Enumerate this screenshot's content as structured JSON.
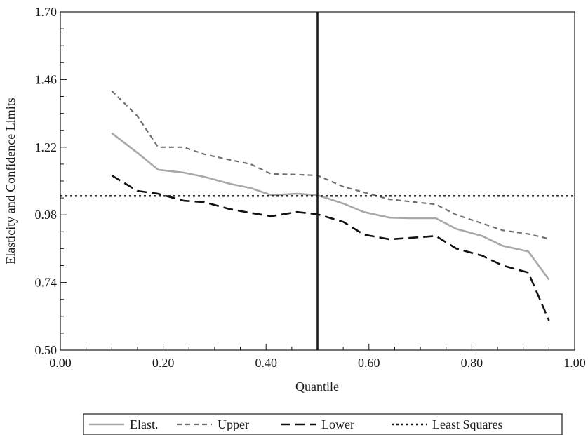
{
  "chart_data": {
    "type": "line",
    "title": "",
    "xlabel": "Quantile",
    "ylabel": "Elasticity and Confidence Limits",
    "xlim": [
      0.0,
      1.0
    ],
    "ylim": [
      0.5,
      1.7
    ],
    "xticks": [
      0.0,
      0.2,
      0.4,
      0.6,
      0.8,
      1.0
    ],
    "xtick_labels": [
      "0.00",
      "0.20",
      "0.40",
      "0.60",
      "0.80",
      "1.00"
    ],
    "yticks": [
      0.5,
      0.74,
      0.98,
      1.22,
      1.46,
      1.7
    ],
    "ytick_labels": [
      "0.50",
      "0.74",
      "0.98",
      "1.22",
      "1.46",
      "1.70"
    ],
    "grid": false,
    "legend_position": "bottom",
    "vertical_line": {
      "x": 0.5,
      "color": "#1a1a1a"
    },
    "series": [
      {
        "name": "Elast.",
        "color": "#a8a8a8",
        "dash": "solid",
        "x": [
          0.1,
          0.15,
          0.19,
          0.24,
          0.28,
          0.33,
          0.37,
          0.41,
          0.46,
          0.5,
          0.55,
          0.59,
          0.64,
          0.68,
          0.73,
          0.77,
          0.82,
          0.86,
          0.91,
          0.95
        ],
        "y": [
          1.27,
          1.2,
          1.14,
          1.13,
          1.115,
          1.09,
          1.075,
          1.05,
          1.055,
          1.05,
          1.02,
          0.99,
          0.97,
          0.968,
          0.968,
          0.93,
          0.905,
          0.87,
          0.85,
          0.75
        ]
      },
      {
        "name": "Upper",
        "color": "#707070",
        "dash": "dashed",
        "x": [
          0.1,
          0.15,
          0.19,
          0.24,
          0.28,
          0.33,
          0.37,
          0.41,
          0.46,
          0.5,
          0.55,
          0.59,
          0.64,
          0.68,
          0.73,
          0.77,
          0.82,
          0.86,
          0.91,
          0.95
        ],
        "y": [
          1.42,
          1.33,
          1.22,
          1.22,
          1.195,
          1.175,
          1.16,
          1.125,
          1.123,
          1.12,
          1.08,
          1.06,
          1.035,
          1.027,
          1.017,
          0.98,
          0.95,
          0.925,
          0.912,
          0.895
        ]
      },
      {
        "name": "Lower",
        "color": "#111111",
        "dash": "longdash",
        "x": [
          0.1,
          0.15,
          0.19,
          0.24,
          0.28,
          0.33,
          0.37,
          0.41,
          0.46,
          0.5,
          0.55,
          0.59,
          0.64,
          0.68,
          0.73,
          0.77,
          0.82,
          0.86,
          0.91,
          0.95
        ],
        "y": [
          1.12,
          1.065,
          1.055,
          1.03,
          1.025,
          1.0,
          0.987,
          0.975,
          0.99,
          0.982,
          0.955,
          0.91,
          0.893,
          0.898,
          0.905,
          0.86,
          0.835,
          0.8,
          0.775,
          0.605
        ]
      },
      {
        "name": "Least Squares",
        "color": "#111111",
        "dash": "dotted",
        "x": [
          0.0,
          1.0
        ],
        "y": [
          1.047,
          1.047
        ]
      }
    ]
  }
}
